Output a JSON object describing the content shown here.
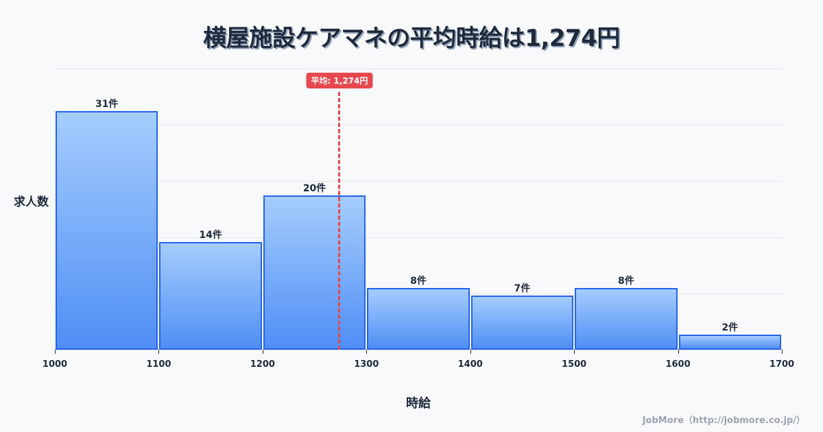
{
  "title": "横屋施設ケアマネの平均時給は1,274円",
  "mean_badge": "平均: 1,274円",
  "ylabel": "求人数",
  "xlabel": "時給",
  "credit": "JobMore（http://jobmore.co.jp/）",
  "colors": {
    "bar_top": "#a5cdfd",
    "bar_bottom": "#4f8ef5",
    "bar_border": "#2563eb",
    "mean_line": "#e5484d",
    "text": "#1e293b",
    "background": "#f8f9fb"
  },
  "chart_data": {
    "type": "bar",
    "subtype": "histogram",
    "title": "横屋施設ケアマネの平均時給は1,274円",
    "xlabel": "時給",
    "ylabel": "求人数",
    "bins": [
      {
        "range": [
          1000,
          1100
        ],
        "count": 31,
        "label": "31件"
      },
      {
        "range": [
          1100,
          1200
        ],
        "count": 14,
        "label": "14件"
      },
      {
        "range": [
          1200,
          1300
        ],
        "count": 20,
        "label": "20件"
      },
      {
        "range": [
          1300,
          1400
        ],
        "count": 8,
        "label": "8件"
      },
      {
        "range": [
          1400,
          1500
        ],
        "count": 7,
        "label": "7件"
      },
      {
        "range": [
          1500,
          1600
        ],
        "count": 8,
        "label": "8件"
      },
      {
        "range": [
          1600,
          1700
        ],
        "count": 2,
        "label": "2件"
      }
    ],
    "categories": [
      "1000-1100",
      "1100-1200",
      "1200-1300",
      "1300-1400",
      "1400-1500",
      "1500-1600",
      "1600-1700"
    ],
    "values": [
      31,
      14,
      20,
      8,
      7,
      8,
      2
    ],
    "x_ticks": [
      "1000",
      "1100",
      "1200",
      "1300",
      "1400",
      "1500",
      "1600",
      "1700"
    ],
    "xlim": [
      1000,
      1700
    ],
    "ylim": [
      0,
      36.5
    ],
    "grid": true,
    "mean": 1274,
    "mean_label": "平均: 1,274円",
    "legend": null
  }
}
